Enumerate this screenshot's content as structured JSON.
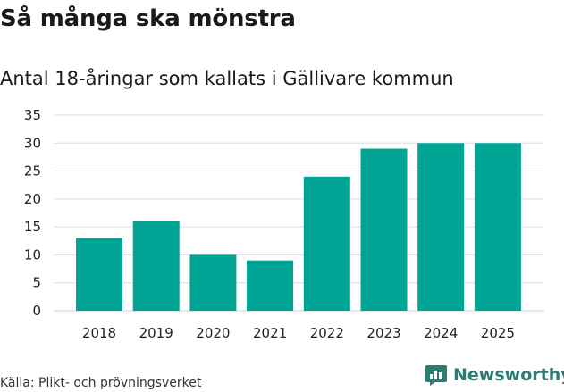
{
  "header": {
    "title": "Så många ska mönstra",
    "subtitle": "Antal 18-åringar som kallats i Gällivare kommun"
  },
  "footer": {
    "source": "Källa: Plikt- och prövningsverket",
    "brand": "Newsworthy",
    "brand_icon": "bar-chart-speech-bubble-icon"
  },
  "colors": {
    "bar": "#00a596",
    "grid": "#dddddd",
    "brand": "#2c7c72"
  },
  "chart_data": {
    "type": "bar",
    "categories": [
      "2018",
      "2019",
      "2020",
      "2021",
      "2022",
      "2023",
      "2024",
      "2025"
    ],
    "values": [
      13,
      16,
      10,
      9,
      24,
      29,
      30,
      30
    ],
    "ylim": [
      0,
      35
    ],
    "yticks": [
      0,
      5,
      10,
      15,
      20,
      25,
      30,
      35
    ],
    "grid": true,
    "legend": "none"
  }
}
